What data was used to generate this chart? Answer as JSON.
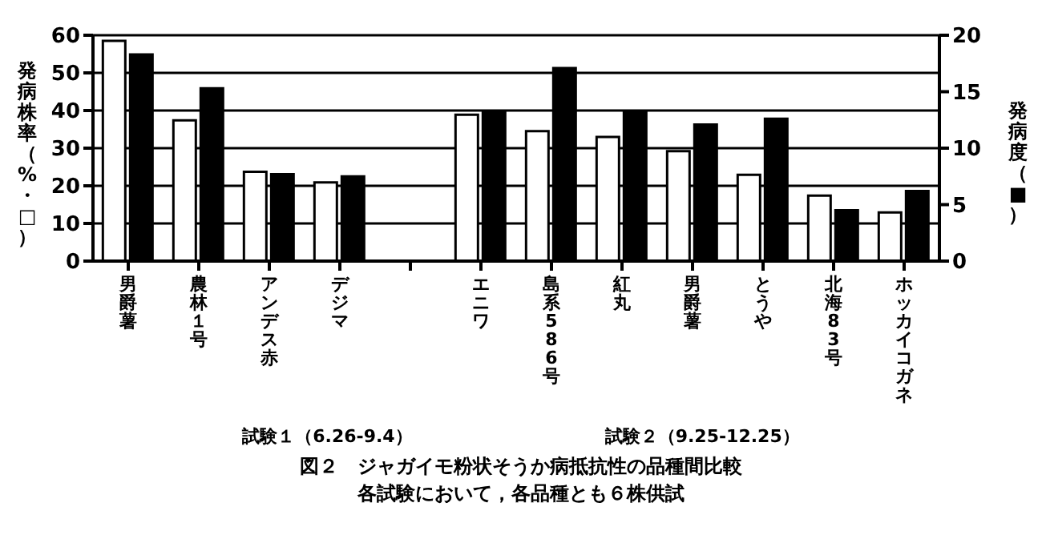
{
  "chart_data": {
    "type": "bar",
    "title": "図２　ジャガイモ粉状そうか病抵抗性の品種間比較",
    "subtitle": "各試験において，各品種とも６株供試",
    "ylabel": "発病株率（%・□）",
    "y2label": "発病度（■）",
    "categories": [
      "男爵薯",
      "農林１号",
      "アンデス赤",
      "デジマ",
      null,
      "エニワ",
      "島系586号",
      "紅丸",
      "男爵薯",
      "とうや",
      "北海83号",
      "ホッカイコガネ"
    ],
    "series": [
      {
        "color": "#ffffff",
        "values": [
          58.5,
          37.4,
          23.7,
          20.9,
          null,
          38.9,
          34.5,
          33,
          29.2,
          22.9,
          17.4,
          12.9
        ]
      },
      {
        "color": "#000000",
        "axis": "y2",
        "values": [
          18.3,
          15.3,
          7.7,
          7.5,
          null,
          13.3,
          17.1,
          13.3,
          12.1,
          12.6,
          4.5,
          6.2
        ]
      }
    ],
    "ylim": [
      0,
      60
    ],
    "yticks": [
      0,
      10,
      20,
      30,
      40,
      50,
      60
    ],
    "y2lim": [
      0,
      20
    ],
    "y2ticks": [
      0,
      5,
      10,
      15,
      20
    ],
    "grid": "y",
    "legend": false,
    "annotations": [
      "試験１（6.26-9.4）",
      "試験２（9.25-12.25）"
    ]
  }
}
